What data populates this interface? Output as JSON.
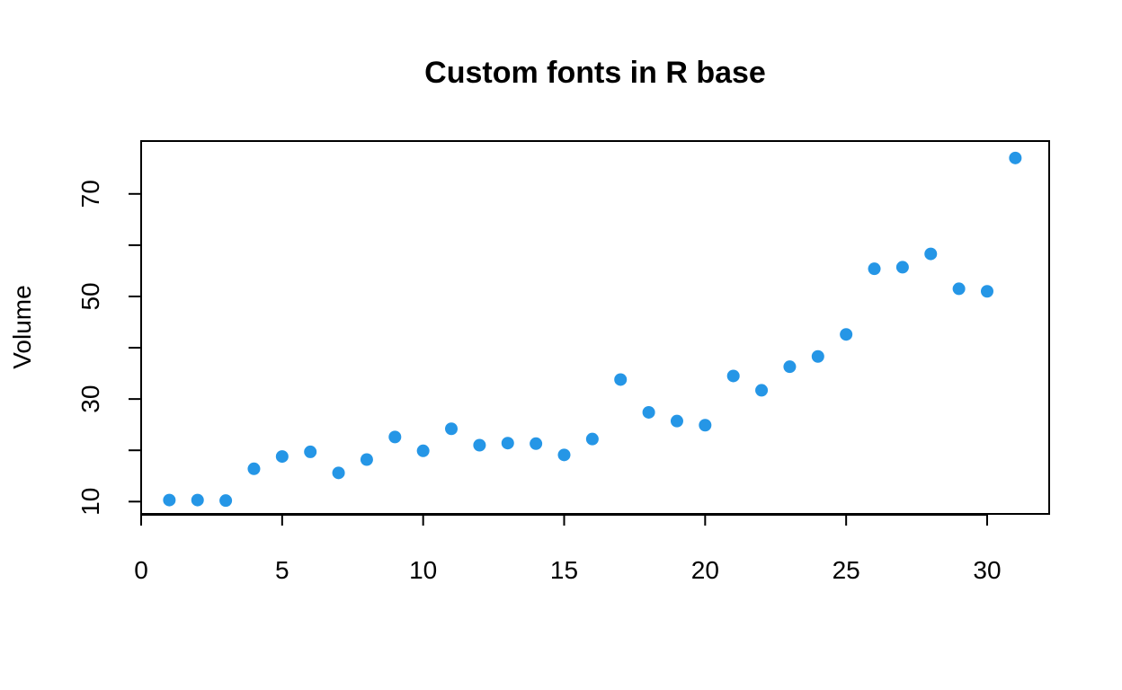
{
  "chart_data": {
    "type": "scatter",
    "title": "Custom fonts in R base",
    "xlabel": "",
    "ylabel": "Volume",
    "xlim": [
      0,
      32.2
    ],
    "ylim": [
      7.6,
      80.3
    ],
    "x_ticks": [
      0,
      5,
      10,
      15,
      20,
      25,
      30
    ],
    "y_ticks": [
      10,
      20,
      30,
      40,
      50,
      60,
      70
    ],
    "y_tick_labels": [
      10,
      30,
      50,
      70
    ],
    "grid": false,
    "point_color": "#2596e6",
    "series": [
      {
        "x": [
          1,
          2,
          3,
          4,
          5,
          6,
          7,
          8,
          9,
          10,
          11,
          12,
          13,
          14,
          15,
          16,
          17,
          18,
          19,
          20,
          21,
          22,
          23,
          24,
          25,
          26,
          27,
          28,
          29,
          30,
          31
        ],
        "y": [
          10.3,
          10.3,
          10.2,
          16.4,
          18.8,
          19.7,
          15.6,
          18.2,
          22.6,
          19.9,
          24.2,
          21.0,
          21.4,
          21.3,
          19.1,
          22.2,
          33.8,
          27.4,
          25.7,
          24.9,
          34.5,
          31.7,
          36.3,
          38.3,
          42.6,
          55.4,
          55.7,
          58.3,
          51.5,
          51.0,
          77.0
        ]
      }
    ]
  }
}
